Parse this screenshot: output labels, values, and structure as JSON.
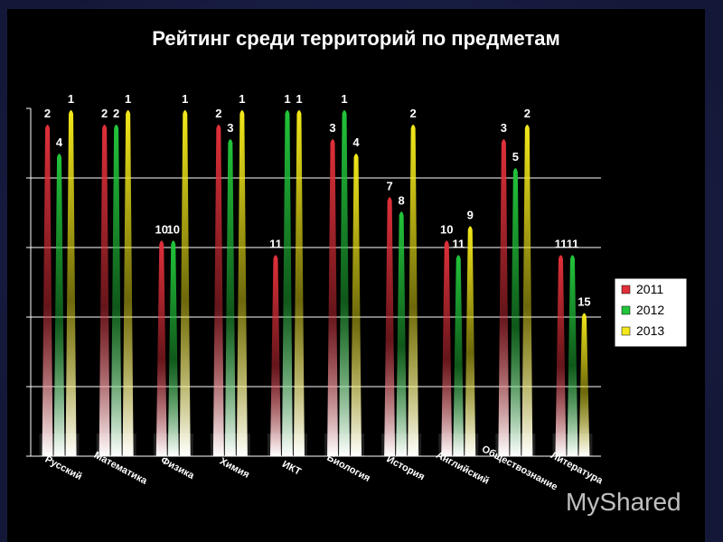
{
  "chart_data": {
    "type": "bar",
    "title": "Рейтинг среди территорий по предметам",
    "categories": [
      "Русский",
      "Математика",
      "Физика",
      "Химия",
      "ИКТ",
      "Биология",
      "История",
      "Английский",
      "Обществознание",
      "Литература"
    ],
    "series": [
      {
        "name": "2011",
        "color": "#e0303a",
        "values": [
          2,
          2,
          10,
          2,
          11,
          3,
          7,
          10,
          3,
          11
        ]
      },
      {
        "name": "2012",
        "color": "#22c43a",
        "values": [
          4,
          2,
          10,
          3,
          1,
          1,
          8,
          11,
          5,
          11
        ]
      },
      {
        "name": "2013",
        "color": "#f2e81a",
        "values": [
          1,
          1,
          1,
          1,
          1,
          4,
          2,
          9,
          2,
          15
        ]
      }
    ],
    "y_inverted": true,
    "ylim": [
      1,
      25
    ],
    "grid": true,
    "legend": "right"
  },
  "watermark": "MyShared"
}
